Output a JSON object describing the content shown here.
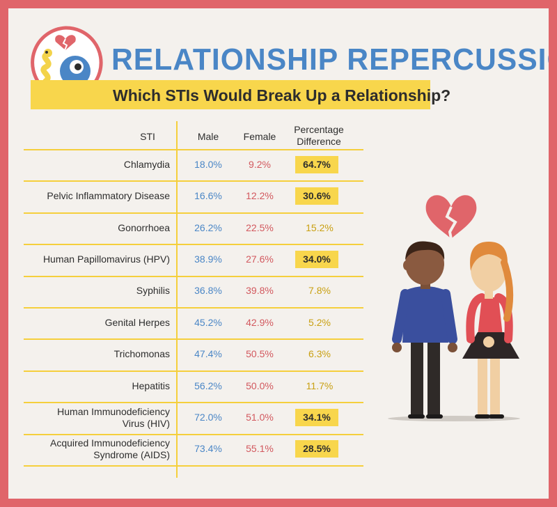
{
  "header": {
    "title": "RELATIONSHIP REPERCUSSIONS",
    "subtitle": "Which STIs Would Break Up a Relationship?"
  },
  "table": {
    "columns": [
      "STI",
      "Male",
      "Female",
      "Percentage Difference"
    ],
    "rows": [
      {
        "sti": "Chlamydia",
        "male": "18.0%",
        "female": "9.2%",
        "diff": "64.7%",
        "highlight": true
      },
      {
        "sti": "Pelvic Inflammatory Disease",
        "male": "16.6%",
        "female": "12.2%",
        "diff": "30.6%",
        "highlight": true
      },
      {
        "sti": "Gonorrhoea",
        "male": "26.2%",
        "female": "22.5%",
        "diff": "15.2%",
        "highlight": false
      },
      {
        "sti": "Human Papillomavirus (HPV)",
        "male": "38.9%",
        "female": "27.6%",
        "diff": "34.0%",
        "highlight": true
      },
      {
        "sti": "Syphilis",
        "male": "36.8%",
        "female": "39.8%",
        "diff": "7.8%",
        "highlight": false
      },
      {
        "sti": "Genital Herpes",
        "male": "45.2%",
        "female": "42.9%",
        "diff": "5.2%",
        "highlight": false
      },
      {
        "sti": "Trichomonas",
        "male": "47.4%",
        "female": "50.5%",
        "diff": "6.3%",
        "highlight": false
      },
      {
        "sti": "Hepatitis",
        "male": "56.2%",
        "female": "50.0%",
        "diff": "11.7%",
        "highlight": false
      },
      {
        "sti": "Human Immunodeficiency Virus (HIV)",
        "male": "72.0%",
        "female": "51.0%",
        "diff": "34.1%",
        "highlight": true
      },
      {
        "sti": "Acquired Immunodeficiency Syndrome (AIDS)",
        "male": "73.4%",
        "female": "55.1%",
        "diff": "28.5%",
        "highlight": true
      }
    ]
  },
  "colors": {
    "border": "#e0656a",
    "background": "#f4f1ed",
    "title_blue": "#4a86c6",
    "banner_yellow": "#f8d64c",
    "male_blue": "#4a86c6",
    "female_red": "#d2585e",
    "diff_gold": "#c9a012"
  },
  "icons": [
    "broken-heart-icon",
    "germ-mascots-icon",
    "couple-illustration"
  ]
}
